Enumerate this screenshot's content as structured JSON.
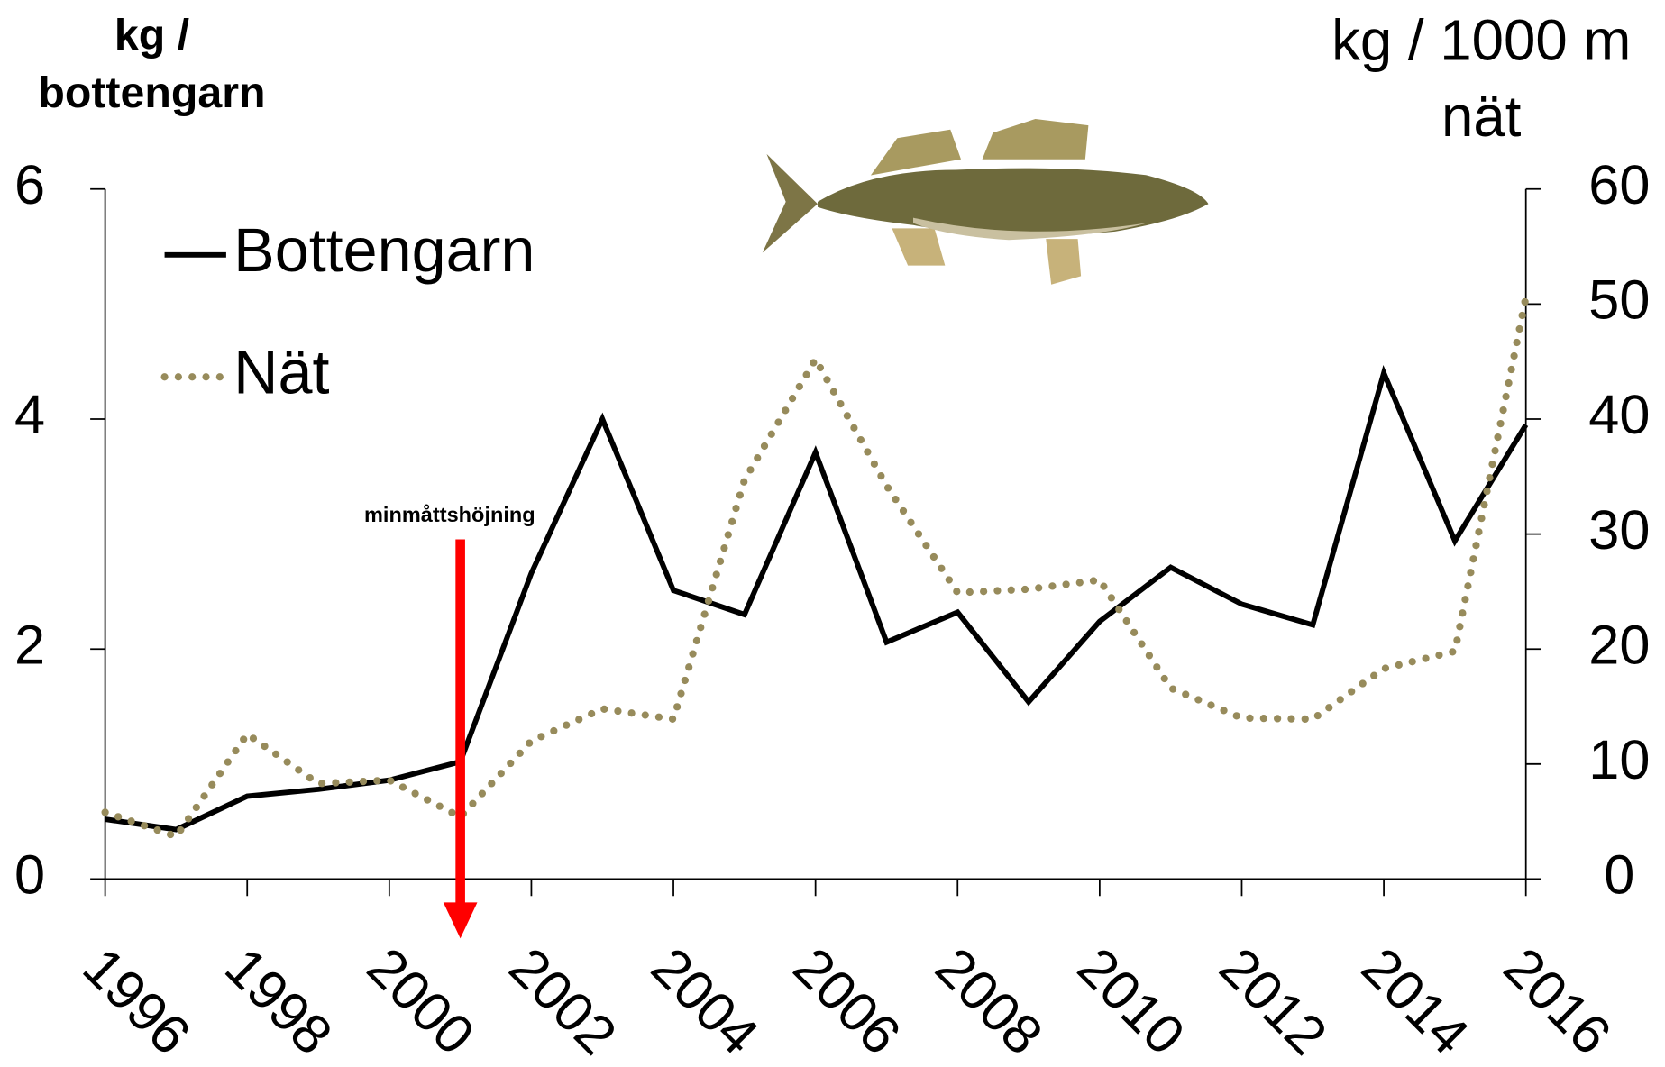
{
  "chart_data": {
    "type": "line",
    "y_label": [
      "kg /",
      "bottengarn"
    ],
    "y2_label": [
      "kg / 1000 m",
      "nät"
    ],
    "x": [
      1996,
      1997,
      1998,
      1999,
      2000,
      2001,
      2002,
      2003,
      2004,
      2005,
      2006,
      2007,
      2008,
      2009,
      2010,
      2011,
      2012,
      2013,
      2014,
      2015,
      2016
    ],
    "xlim": [
      1996,
      2016
    ],
    "xticks": [
      1996,
      1998,
      2000,
      2002,
      2004,
      2006,
      2008,
      2010,
      2012,
      2014,
      2016
    ],
    "ylim": [
      0,
      6
    ],
    "yticks": [
      0,
      2,
      4,
      6
    ],
    "y2lim": [
      0,
      60
    ],
    "y2ticks": [
      0,
      10,
      20,
      30,
      40,
      50,
      60
    ],
    "legend": "upper left",
    "series": [
      {
        "name": "Bottengarn",
        "color": "#000000",
        "style": "solid",
        "values": [
          0.52,
          0.43,
          0.72,
          0.78,
          0.86,
          1.02,
          2.66,
          4.0,
          2.51,
          2.3,
          3.71,
          2.06,
          2.32,
          1.54,
          2.24,
          2.71,
          2.39,
          2.21,
          4.4,
          2.94,
          3.95
        ]
      },
      {
        "name": "Nät",
        "color": "#978b5b",
        "style": "dotted",
        "axis": "y2",
        "values": [
          5.8,
          3.7,
          12.6,
          8.3,
          8.6,
          5.4,
          12.0,
          14.8,
          13.9,
          34.7,
          45.2,
          34.2,
          24.9,
          25.2,
          26.0,
          16.6,
          14.0,
          13.9,
          18.3,
          19.8,
          50.6
        ]
      }
    ],
    "annotation": {
      "text": "minmåttshöjning",
      "x": 2001,
      "color": "#ff0000"
    }
  }
}
